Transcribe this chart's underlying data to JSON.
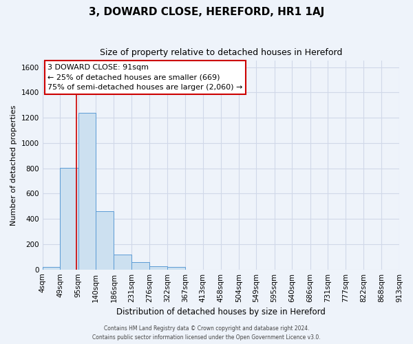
{
  "title": "3, DOWARD CLOSE, HEREFORD, HR1 1AJ",
  "subtitle": "Size of property relative to detached houses in Hereford",
  "xlabel": "Distribution of detached houses by size in Hereford",
  "ylabel": "Number of detached properties",
  "annotation_title": "3 DOWARD CLOSE: 91sqm",
  "annotation_line1": "← 25% of detached houses are smaller (669)",
  "annotation_line2": "75% of semi-detached houses are larger (2,060) →",
  "red_line_x": 91,
  "bar_edges": [
    4,
    49,
    95,
    140,
    186,
    231,
    276,
    322,
    367,
    413,
    458,
    504,
    549,
    595,
    640,
    686,
    731,
    777,
    822,
    868,
    913
  ],
  "bar_heights": [
    20,
    805,
    1240,
    460,
    120,
    60,
    25,
    20,
    0,
    0,
    0,
    0,
    0,
    0,
    0,
    0,
    0,
    0,
    0,
    0
  ],
  "bar_fill_color": "#cce0f0",
  "bar_edge_color": "#5b9bd5",
  "grid_color": "#d0d8e8",
  "background_color": "#eef3fa",
  "red_line_color": "#cc0000",
  "annotation_box_edge_color": "#cc0000",
  "ylim": [
    0,
    1650
  ],
  "yticks": [
    0,
    200,
    400,
    600,
    800,
    1000,
    1200,
    1400,
    1600
  ],
  "footer_line1": "Contains HM Land Registry data © Crown copyright and database right 2024.",
  "footer_line2": "Contains public sector information licensed under the Open Government Licence v3.0."
}
